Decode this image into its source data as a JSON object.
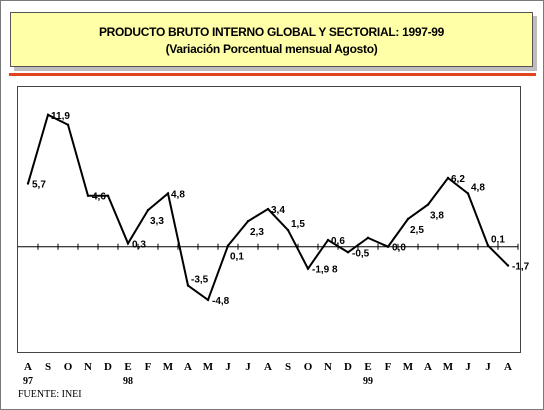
{
  "chart_data": {
    "type": "line",
    "title": "PRODUCTO BRUTO INTERNO GLOBAL Y SECTORIAL: 1997-99",
    "subtitle": "(Variación Porcentual mensual Agosto)",
    "source": "FUENTE: INEI",
    "x": [
      "A",
      "S",
      "O",
      "N",
      "D",
      "E",
      "F",
      "M",
      "A",
      "M",
      "J",
      "J",
      "A",
      "S",
      "O",
      "N",
      "D",
      "E",
      "F",
      "M",
      "A",
      "M",
      "J",
      "J",
      "A"
    ],
    "x_year_labels": [
      "97",
      "",
      "",
      "",
      "",
      "98",
      "",
      "",
      "",
      "",
      "",
      "",
      "",
      "",
      "",
      "",
      "",
      "99",
      "",
      "",
      "",
      "",
      "",
      "",
      ""
    ],
    "series": [
      {
        "values": [
          5.7,
          11.9,
          11.0,
          4.6,
          4.6,
          0.3,
          3.3,
          4.8,
          -3.5,
          -4.8,
          0.1,
          2.3,
          3.4,
          1.5,
          -1.98,
          0.6,
          -0.5,
          0.8,
          0.0,
          2.5,
          3.8,
          6.2,
          4.8,
          0.1,
          -1.7
        ],
        "data_labels": [
          "5,7",
          "11,9",
          "",
          "4,6",
          "",
          "0,3",
          "3,3",
          "4,8",
          "-3,5",
          "-4,8",
          "0,1",
          "2,3",
          "3,4",
          "1,5",
          "-1,9 8",
          "0,6",
          "-0,5",
          "",
          "0,0",
          "2,5",
          "3,8",
          "6,2",
          "4,8",
          "0,1",
          "-1,7"
        ],
        "color": "#000000"
      }
    ],
    "ylim": [
      -9.5,
      14.5
    ],
    "grid": false,
    "legend": "none",
    "xlabel": "",
    "ylabel": ""
  }
}
